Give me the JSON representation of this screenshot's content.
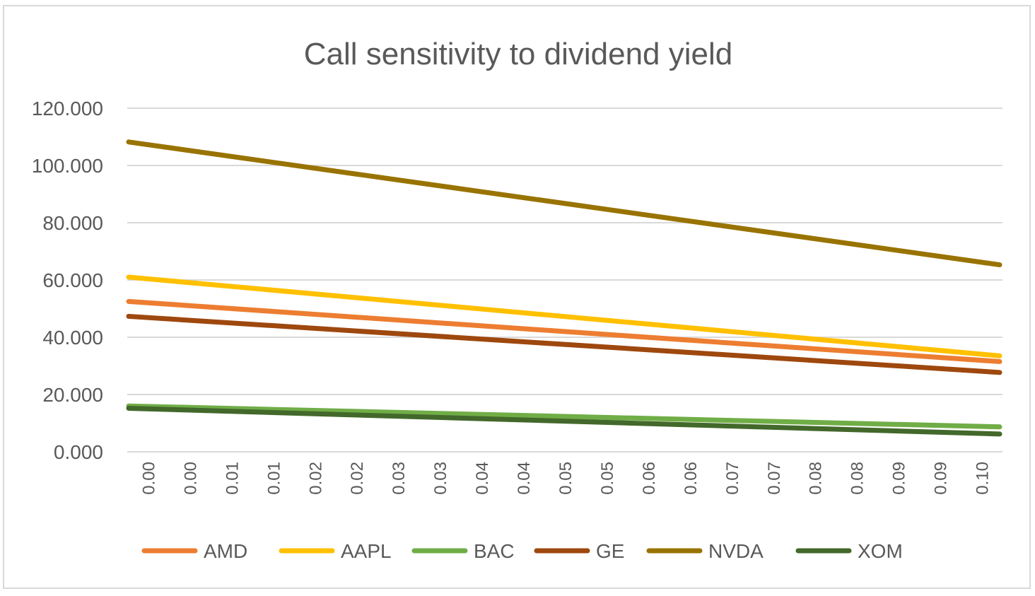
{
  "chart_data": {
    "type": "line",
    "title": "Call sensitivity to dividend yield",
    "xlabel": "",
    "ylabel": "",
    "ylim": [
      0,
      120
    ],
    "yticks": [
      "0.000",
      "20.000",
      "40.000",
      "60.000",
      "80.000",
      "100.000",
      "120.000"
    ],
    "x": [
      "0.00",
      "0.00",
      "0.01",
      "0.01",
      "0.02",
      "0.02",
      "0.03",
      "0.03",
      "0.04",
      "0.04",
      "0.05",
      "0.05",
      "0.06",
      "0.06",
      "0.07",
      "0.07",
      "0.08",
      "0.08",
      "0.09",
      "0.09",
      "0.10"
    ],
    "grid": true,
    "legend_position": "bottom",
    "series": [
      {
        "name": "AMD",
        "color": "#ED7D31",
        "start": 52.5,
        "end": 31.5
      },
      {
        "name": "AAPL",
        "color": "#FFC000",
        "start": 61.0,
        "end": 33.5
      },
      {
        "name": "BAC",
        "color": "#70AD47",
        "start": 16.0,
        "end": 8.7
      },
      {
        "name": "GE",
        "color": "#9E480E",
        "start": 47.3,
        "end": 27.7
      },
      {
        "name": "NVDA",
        "color": "#997300",
        "start": 108.2,
        "end": 65.3
      },
      {
        "name": "XOM",
        "color": "#43682B",
        "start": 15.2,
        "end": 6.2
      }
    ]
  }
}
